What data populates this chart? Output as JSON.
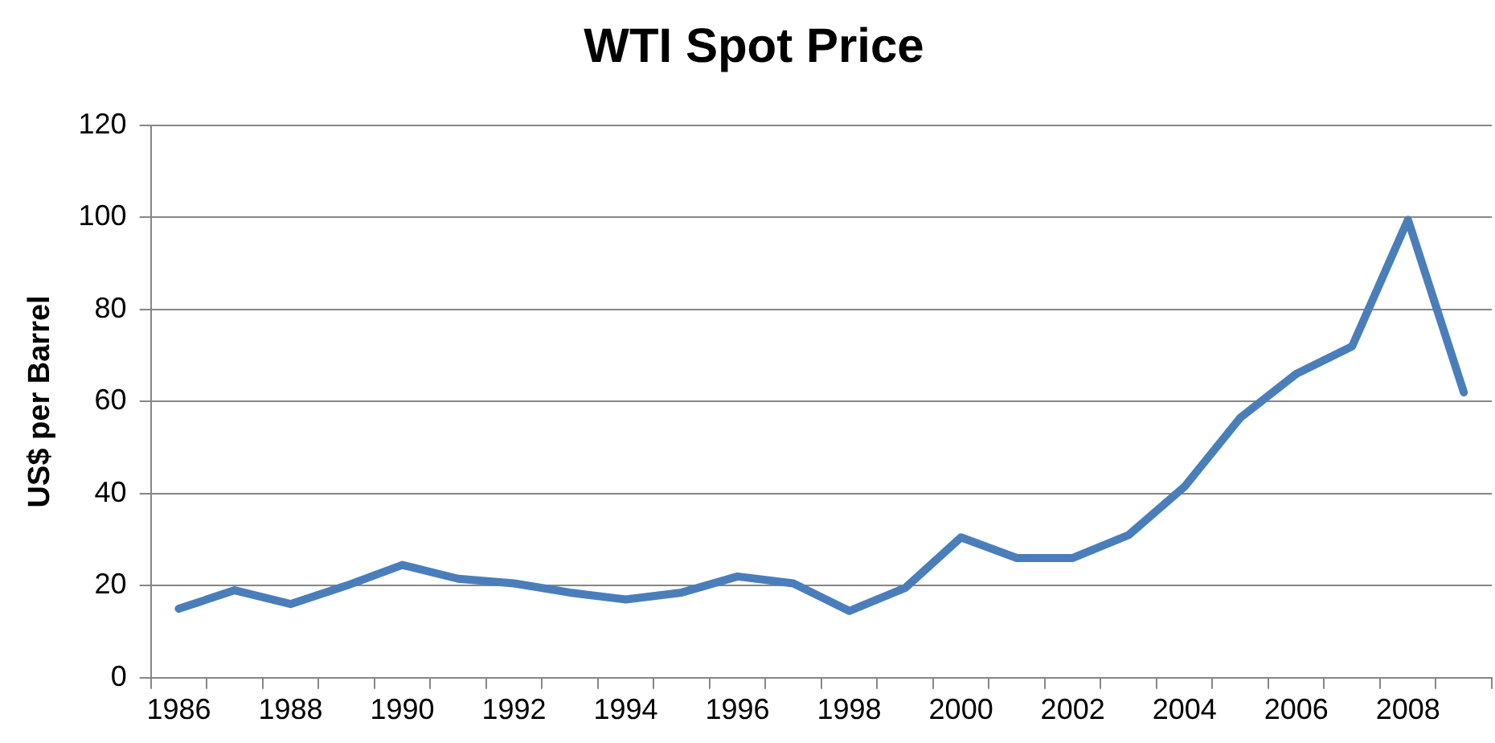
{
  "chart_data": {
    "type": "line",
    "title": "WTI Spot Price",
    "ylabel": "US$ per Barrel",
    "categories": [
      "1986",
      null,
      "1988",
      null,
      "1990",
      null,
      "1992",
      null,
      "1994",
      null,
      "1996",
      null,
      "1998",
      null,
      "2000",
      null,
      "2002",
      null,
      "2004",
      null,
      "2006",
      null,
      "2008",
      null
    ],
    "series": [
      {
        "color": "#4a7ebb",
        "values": [
          15,
          19,
          16,
          20,
          24.5,
          21.5,
          20.5,
          18.5,
          17,
          18.5,
          22,
          20.5,
          14.5,
          19.5,
          30.5,
          26,
          26,
          31,
          41.5,
          56.5,
          66,
          72,
          99.5,
          62
        ]
      }
    ],
    "ylim": [
      0,
      120
    ],
    "yticks": [
      0,
      20,
      40,
      60,
      80,
      100,
      120
    ],
    "grid": "y",
    "legend": false,
    "marker": "none",
    "line_style": "solid"
  }
}
